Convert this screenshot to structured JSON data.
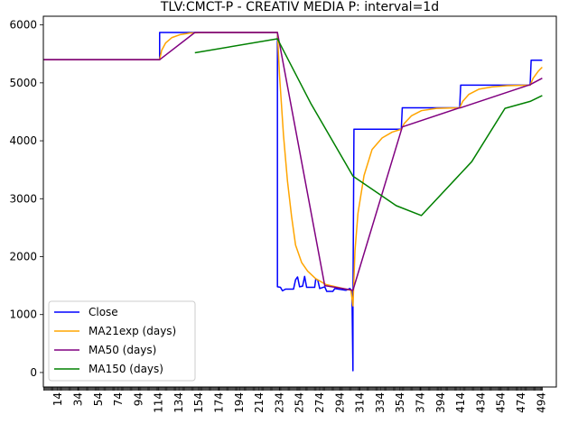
{
  "chart_data": {
    "type": "line",
    "title": "TLV:CMCT-P - CREATIV MEDIA P: interval=1d",
    "xlabel": "",
    "ylabel": "",
    "xlim": [
      -0.5,
      509
    ],
    "ylim": [
      -250,
      6150
    ],
    "x_ticks": [
      14,
      34,
      54,
      74,
      94,
      114,
      134,
      154,
      174,
      194,
      214,
      234,
      254,
      274,
      294,
      314,
      334,
      354,
      374,
      394,
      414,
      434,
      454,
      474,
      494
    ],
    "y_ticks": [
      0,
      1000,
      2000,
      3000,
      4000,
      5000,
      6000
    ],
    "grid": false,
    "legend_position": "lower-left",
    "series": [
      {
        "name": "Close",
        "color": "#0000ff",
        "points": [
          [
            0,
            5400
          ],
          [
            115,
            5400
          ],
          [
            115,
            5870
          ],
          [
            232,
            5870
          ],
          [
            232,
            1480
          ],
          [
            235,
            1470
          ],
          [
            237,
            1410
          ],
          [
            240,
            1440
          ],
          [
            248,
            1440
          ],
          [
            250,
            1600
          ],
          [
            252,
            1650
          ],
          [
            254,
            1480
          ],
          [
            257,
            1490
          ],
          [
            259,
            1660
          ],
          [
            261,
            1470
          ],
          [
            269,
            1470
          ],
          [
            270,
            1610
          ],
          [
            272,
            1600
          ],
          [
            274,
            1450
          ],
          [
            279,
            1480
          ],
          [
            281,
            1400
          ],
          [
            287,
            1400
          ],
          [
            289,
            1450
          ],
          [
            300,
            1420
          ],
          [
            304,
            1450
          ],
          [
            306,
            1400
          ],
          [
            307,
            30
          ],
          [
            307,
            1130
          ],
          [
            308,
            4200
          ],
          [
            355,
            4200
          ],
          [
            356,
            4570
          ],
          [
            413,
            4570
          ],
          [
            414,
            4960
          ],
          [
            483,
            4960
          ],
          [
            484,
            5390
          ],
          [
            495,
            5390
          ]
        ]
      },
      {
        "name": "MA21exp (days)",
        "color": "#ffa500",
        "points": [
          [
            0,
            5400
          ],
          [
            115,
            5400
          ],
          [
            117,
            5560
          ],
          [
            121,
            5690
          ],
          [
            127,
            5780
          ],
          [
            135,
            5830
          ],
          [
            145,
            5860
          ],
          [
            160,
            5870
          ],
          [
            232,
            5870
          ],
          [
            234,
            5150
          ],
          [
            238,
            4100
          ],
          [
            242,
            3300
          ],
          [
            246,
            2700
          ],
          [
            250,
            2200
          ],
          [
            256,
            1900
          ],
          [
            262,
            1750
          ],
          [
            270,
            1620
          ],
          [
            280,
            1520
          ],
          [
            295,
            1460
          ],
          [
            305,
            1420
          ],
          [
            307,
            1150
          ],
          [
            309,
            2100
          ],
          [
            312,
            2750
          ],
          [
            318,
            3400
          ],
          [
            326,
            3850
          ],
          [
            336,
            4050
          ],
          [
            346,
            4150
          ],
          [
            355,
            4200
          ],
          [
            358,
            4300
          ],
          [
            365,
            4430
          ],
          [
            375,
            4520
          ],
          [
            390,
            4560
          ],
          [
            413,
            4570
          ],
          [
            416,
            4680
          ],
          [
            422,
            4800
          ],
          [
            432,
            4890
          ],
          [
            445,
            4930
          ],
          [
            460,
            4950
          ],
          [
            483,
            4960
          ],
          [
            486,
            5080
          ],
          [
            491,
            5200
          ],
          [
            495,
            5270
          ]
        ]
      },
      {
        "name": "MA50 (days)",
        "color": "#800080",
        "points": [
          [
            0,
            5400
          ],
          [
            115,
            5400
          ],
          [
            150,
            5870
          ],
          [
            232,
            5870
          ],
          [
            279,
            1500
          ],
          [
            307,
            1420
          ],
          [
            356,
            4240
          ],
          [
            413,
            4570
          ],
          [
            414,
            4570
          ],
          [
            483,
            4970
          ],
          [
            495,
            5080
          ]
        ]
      },
      {
        "name": "MA150 (days)",
        "color": "#008000",
        "points": [
          [
            150,
            5520
          ],
          [
            232,
            5760
          ],
          [
            265,
            4650
          ],
          [
            307,
            3390
          ],
          [
            350,
            2880
          ],
          [
            375,
            2710
          ],
          [
            425,
            3640
          ],
          [
            458,
            4560
          ],
          [
            483,
            4680
          ],
          [
            495,
            4780
          ]
        ]
      }
    ]
  }
}
